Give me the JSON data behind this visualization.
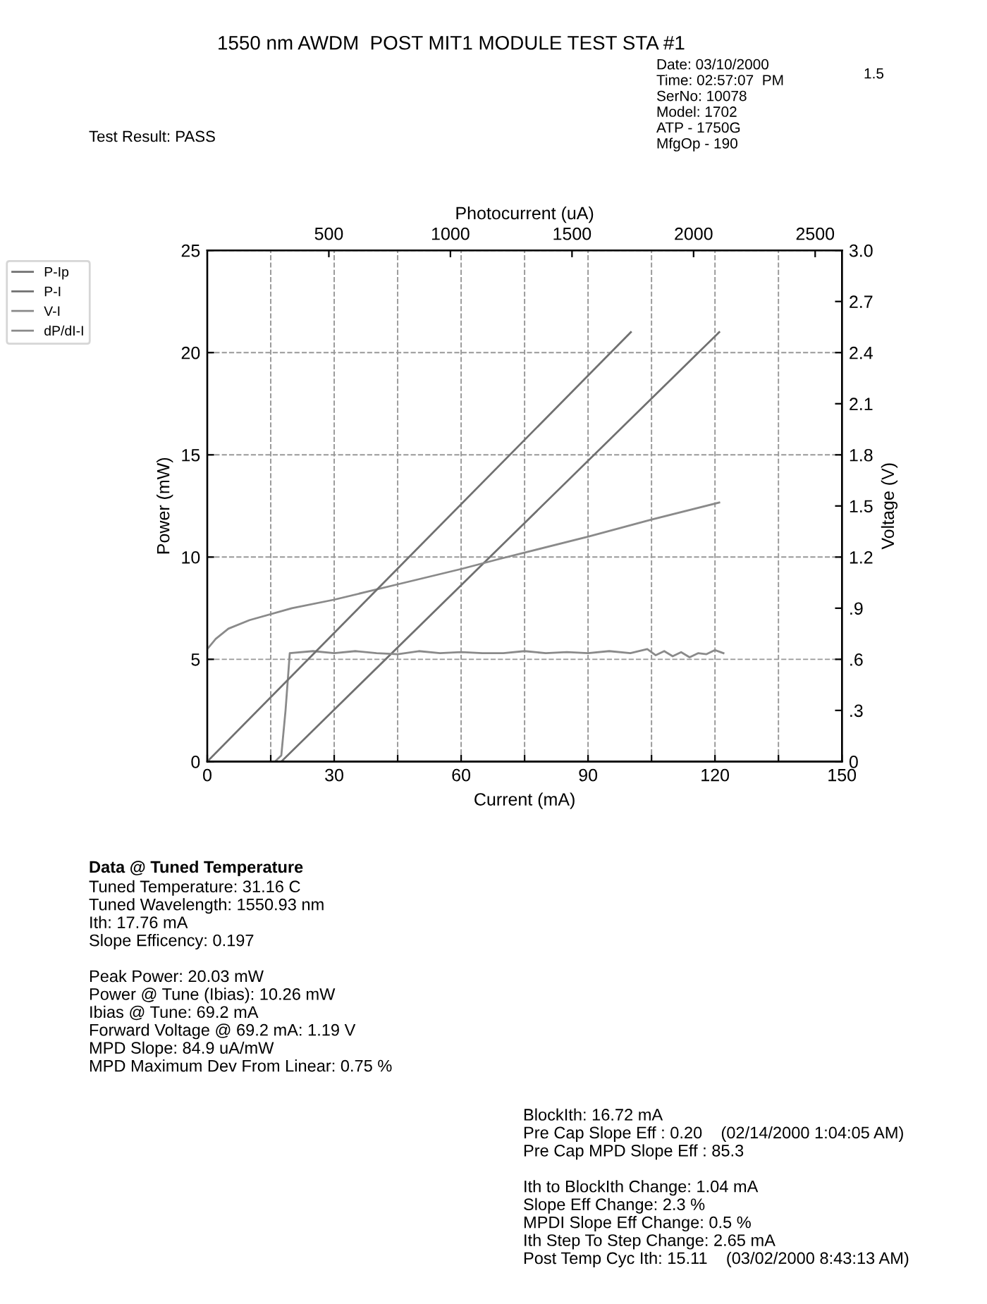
{
  "chart_data": {
    "type": "line",
    "title": "1550 nm AWDM  POST MIT1 MODULE TEST STA #1",
    "xlabel": "Current (mA)",
    "ylabel": "Power (mW)",
    "y2label": "Voltage (V)",
    "x2label": "Photocurrent (uA)",
    "xlim": [
      0,
      150
    ],
    "xticks": [
      0,
      {
        "value": 15,
        "label": null
      },
      30,
      {
        "value": 45,
        "label": null
      },
      60,
      {
        "value": 75,
        "label": null
      },
      90,
      {
        "value": 105,
        "label": null
      },
      120,
      {
        "value": 135,
        "label": null
      },
      150
    ],
    "ylim": [
      0,
      25
    ],
    "yticks": [
      0,
      5,
      10,
      15,
      20,
      25
    ],
    "y2lim": [
      0,
      3.0
    ],
    "y2ticks": [
      0,
      {
        "value": 0.3,
        "label": ".3"
      },
      {
        "value": 0.6,
        "label": ".6"
      },
      {
        "value": 0.9,
        "label": ".9"
      },
      1.2,
      1.5,
      1.8,
      2.1,
      2.4,
      2.7,
      {
        "value": 3.0,
        "label": "3.0"
      }
    ],
    "x2lim": [
      0,
      2610
    ],
    "x2ticks": [
      500,
      1000,
      1500,
      2000,
      2500
    ],
    "grid": true,
    "line_style": "solid",
    "marker": "none",
    "legend": "left",
    "series": [
      {
        "name": "P-Ip",
        "color": "#707070",
        "axis": "x2",
        "x": [
          0,
          1742
        ],
        "values": [
          0,
          21.0
        ]
      },
      {
        "name": "P-I",
        "color": "#707070",
        "x": [
          0,
          17.5,
          121
        ],
        "values": [
          0,
          0,
          21.0
        ]
      },
      {
        "name": "V-I",
        "color": "#8a8a8a",
        "axis": "y2",
        "x": [
          0,
          2,
          5,
          10,
          20,
          30,
          45,
          60,
          69.2,
          90,
          105,
          121
        ],
        "values": [
          0.66,
          0.72,
          0.78,
          0.83,
          0.9,
          0.95,
          1.04,
          1.13,
          1.19,
          1.32,
          1.42,
          1.52
        ]
      },
      {
        "name": "dP/dI-I",
        "color": "#8a8a8a",
        "x": [
          0,
          16,
          17.5,
          18.5,
          19.5,
          25,
          30,
          35,
          40,
          45,
          50,
          55,
          60,
          65,
          70,
          75,
          80,
          85,
          90,
          95,
          100,
          104,
          106,
          108,
          110,
          112,
          114,
          116,
          118,
          120,
          122
        ],
        "values": [
          0,
          0,
          0.3,
          2.5,
          5.3,
          5.4,
          5.3,
          5.4,
          5.3,
          5.25,
          5.4,
          5.3,
          5.35,
          5.3,
          5.3,
          5.4,
          5.3,
          5.35,
          5.3,
          5.4,
          5.3,
          5.5,
          5.2,
          5.4,
          5.15,
          5.35,
          5.1,
          5.3,
          5.25,
          5.45,
          5.3
        ]
      }
    ],
    "annotations": [
      "Test Result: PASS",
      "Date: 03/10/2000\nTime: 02:57:07  PM\nSerNo: 10078\nModel: 1702\nATP - 1750G\nMfgOp - 190",
      "1.5",
      "Data @ Tuned Temperature",
      "Tuned Temperature: 31.16 C\nTuned Wavelength: 1550.93 nm\nIth: 17.76 mA\nSlope Efficency: 0.197\n\nPeak Power: 20.03 mW\nPower @ Tune (Ibias): 10.26 mW\nIbias @ Tune: 69.2 mA\nForward Voltage @ 69.2 mA: 1.19 V\nMPD Slope: 84.9 uA/mW\nMPD Maximum Dev From Linear: 0.75 %",
      "BlockIth: 16.72 mA\nPre Cap Slope Eff : 0.20    (02/14/2000 1:04:05 AM)\nPre Cap MPD Slope Eff : 85.3\n\nIth to BlockIth Change: 1.04 mA\nSlope Eff Change: 2.3 %\nMPDI Slope Eff Change: 0.5 %\nIth Step To Step Change: 2.65 mA\nPost Temp Cyc Ith: 15.11    (03/02/2000 8:43:13 AM)"
    ]
  }
}
